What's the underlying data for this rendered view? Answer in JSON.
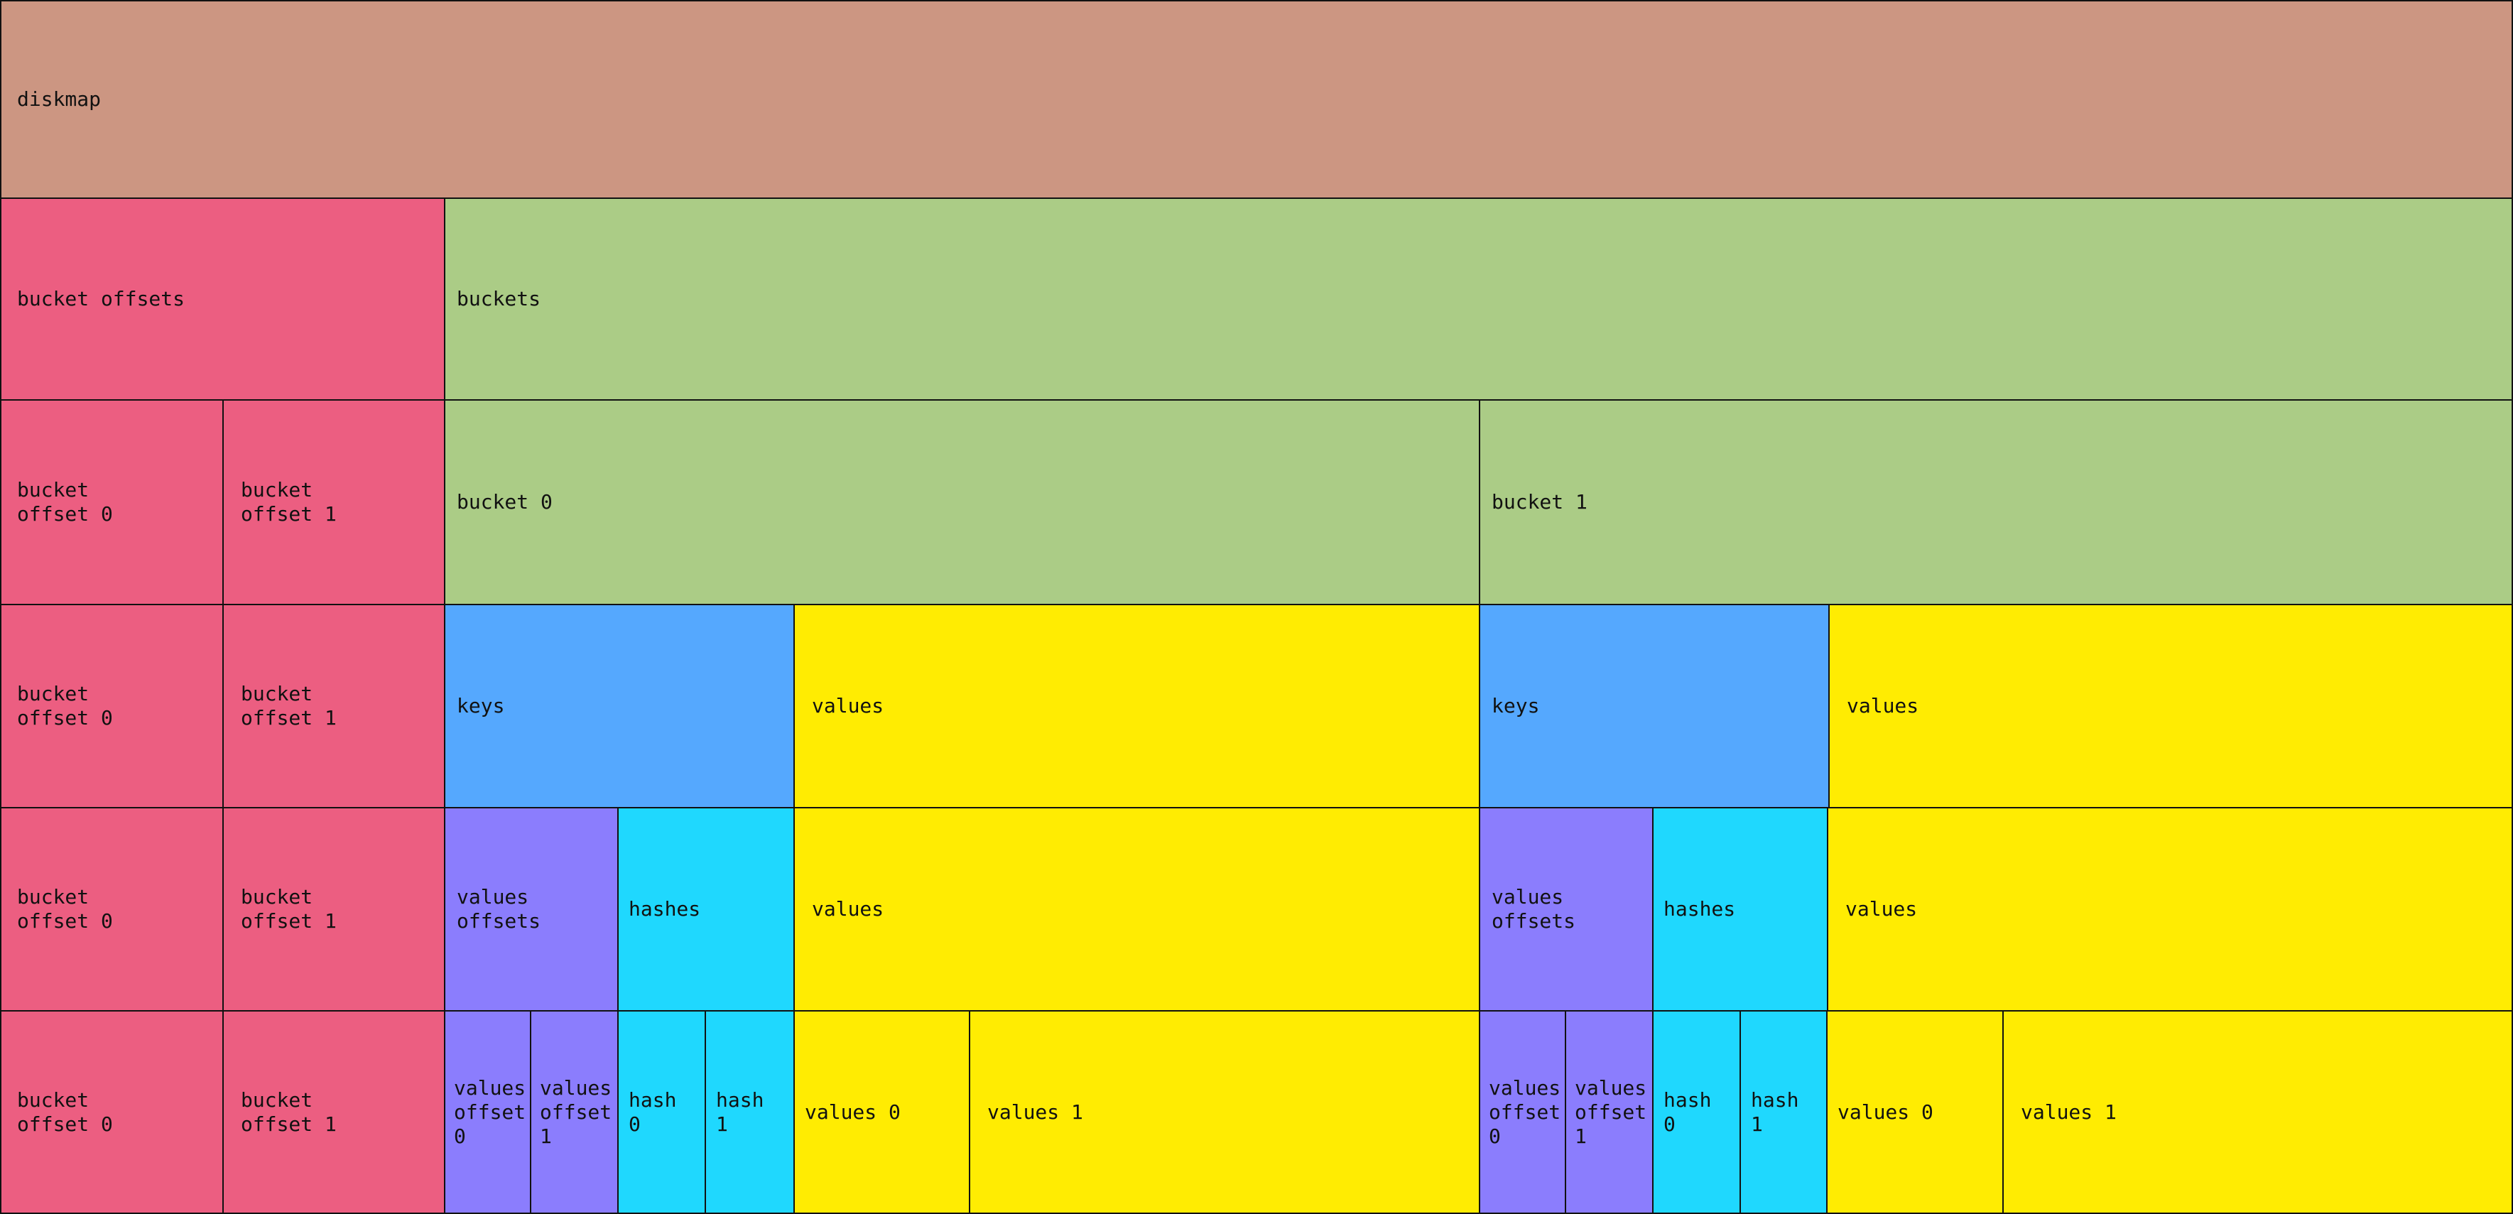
{
  "colors": {
    "diskmap": "#cc9682",
    "bucket_offsets": "#ec5e81",
    "buckets": "#abcc86",
    "keys": "#55a8fe",
    "values": "#ffec02",
    "values_offsets": "#8b7dfd",
    "hashes": "#1fd8fe",
    "border": "#111111"
  },
  "rows": [
    {
      "cells": [
        {
          "name": "diskmap-block",
          "label": "diskmap",
          "kind": "diskmap"
        }
      ]
    },
    {
      "cells": [
        {
          "name": "bucket-offsets-block",
          "label": "bucket offsets",
          "kind": "bucket_offsets"
        },
        {
          "name": "buckets-block",
          "label": "buckets",
          "kind": "buckets"
        }
      ]
    },
    {
      "cells": [
        {
          "name": "bucket-offset-0-block",
          "label": "bucket\noffset 0",
          "kind": "bucket_offsets"
        },
        {
          "name": "bucket-offset-1-block",
          "label": "bucket\noffset 1",
          "kind": "bucket_offsets"
        },
        {
          "name": "bucket-0-block",
          "label": "bucket 0",
          "kind": "buckets"
        },
        {
          "name": "bucket-1-block",
          "label": "bucket 1",
          "kind": "buckets"
        }
      ]
    },
    {
      "cells": [
        {
          "name": "bucket-offset-0-block",
          "label": "bucket\noffset 0",
          "kind": "bucket_offsets"
        },
        {
          "name": "bucket-offset-1-block",
          "label": "bucket\noffset 1",
          "kind": "bucket_offsets"
        },
        {
          "name": "keys-block",
          "label": "keys",
          "kind": "keys"
        },
        {
          "name": "values-block",
          "label": "values",
          "kind": "values"
        },
        {
          "name": "keys-block",
          "label": "keys",
          "kind": "keys"
        },
        {
          "name": "values-block",
          "label": "values",
          "kind": "values"
        }
      ]
    },
    {
      "cells": [
        {
          "name": "bucket-offset-0-block",
          "label": "bucket\noffset 0",
          "kind": "bucket_offsets"
        },
        {
          "name": "bucket-offset-1-block",
          "label": "bucket\noffset 1",
          "kind": "bucket_offsets"
        },
        {
          "name": "values-offsets-block",
          "label": "values\noffsets",
          "kind": "values_offsets"
        },
        {
          "name": "hashes-block",
          "label": "hashes",
          "kind": "hashes"
        },
        {
          "name": "values-block",
          "label": "values",
          "kind": "values"
        },
        {
          "name": "values-offsets-block",
          "label": "values\noffsets",
          "kind": "values_offsets"
        },
        {
          "name": "hashes-block",
          "label": "hashes",
          "kind": "hashes"
        },
        {
          "name": "values-block",
          "label": "values",
          "kind": "values"
        }
      ]
    },
    {
      "cells": [
        {
          "name": "bucket-offset-0-block",
          "label": "bucket\noffset 0",
          "kind": "bucket_offsets"
        },
        {
          "name": "bucket-offset-1-block",
          "label": "bucket\noffset 1",
          "kind": "bucket_offsets"
        },
        {
          "name": "values-offset-0-block",
          "label": "values\noffset\n0",
          "kind": "values_offsets"
        },
        {
          "name": "values-offset-1-block",
          "label": "values\noffset\n1",
          "kind": "values_offsets"
        },
        {
          "name": "hash-0-block",
          "label": "hash\n0",
          "kind": "hashes"
        },
        {
          "name": "hash-1-block",
          "label": "hash\n1",
          "kind": "hashes"
        },
        {
          "name": "values-0-block",
          "label": "values 0",
          "kind": "values"
        },
        {
          "name": "values-1-block",
          "label": "values 1",
          "kind": "values"
        },
        {
          "name": "values-offset-0-block",
          "label": "values\noffset\n0",
          "kind": "values_offsets"
        },
        {
          "name": "values-offset-1-block",
          "label": "values\noffset\n1",
          "kind": "values_offsets"
        },
        {
          "name": "hash-0-block",
          "label": "hash\n0",
          "kind": "hashes"
        },
        {
          "name": "hash-1-block",
          "label": "hash\n1",
          "kind": "hashes"
        },
        {
          "name": "values-0-block",
          "label": "values 0",
          "kind": "values"
        },
        {
          "name": "values-1-block",
          "label": "values 1",
          "kind": "values"
        }
      ]
    }
  ]
}
